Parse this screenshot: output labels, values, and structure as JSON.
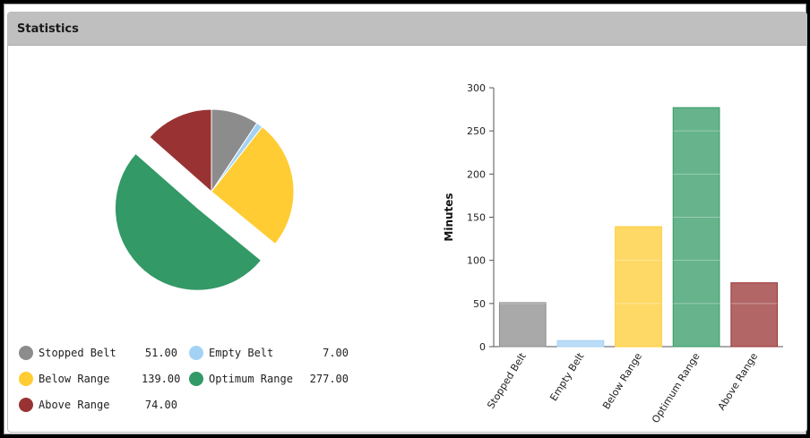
{
  "panel": {
    "title": "Statistics"
  },
  "colors": {
    "stopped": "#8c8c8c",
    "empty": "#a4d2f5",
    "below": "#ffcc33",
    "optimum": "#339966",
    "above": "#993333"
  },
  "legend": [
    {
      "label": "Stopped Belt",
      "value": "51.00",
      "color": "#8c8c8c"
    },
    {
      "label": "Empty Belt",
      "value": "7.00",
      "color": "#a4d2f5"
    },
    {
      "label": "Below Range",
      "value": "139.00",
      "color": "#ffcc33"
    },
    {
      "label": "Optimum Range",
      "value": "277.00",
      "color": "#339966"
    },
    {
      "label": "Above Range",
      "value": "74.00",
      "color": "#993333"
    }
  ],
  "chart_data": [
    {
      "type": "pie",
      "categories": [
        "Stopped Belt",
        "Empty Belt",
        "Below Range",
        "Optimum Range",
        "Above Range"
      ],
      "values": [
        51,
        7,
        139,
        277,
        74
      ],
      "exploded": "Optimum Range"
    },
    {
      "type": "bar",
      "categories": [
        "Stopped Belt",
        "Empty Belt",
        "Below Range",
        "Optimum Range",
        "Above Range"
      ],
      "values": [
        51,
        7,
        139,
        277,
        74
      ],
      "ylabel": "Minutes",
      "ylim": [
        0,
        300
      ],
      "yticks": [
        "0",
        "50",
        "100",
        "150",
        "200",
        "250",
        "300"
      ],
      "grid": true
    }
  ]
}
